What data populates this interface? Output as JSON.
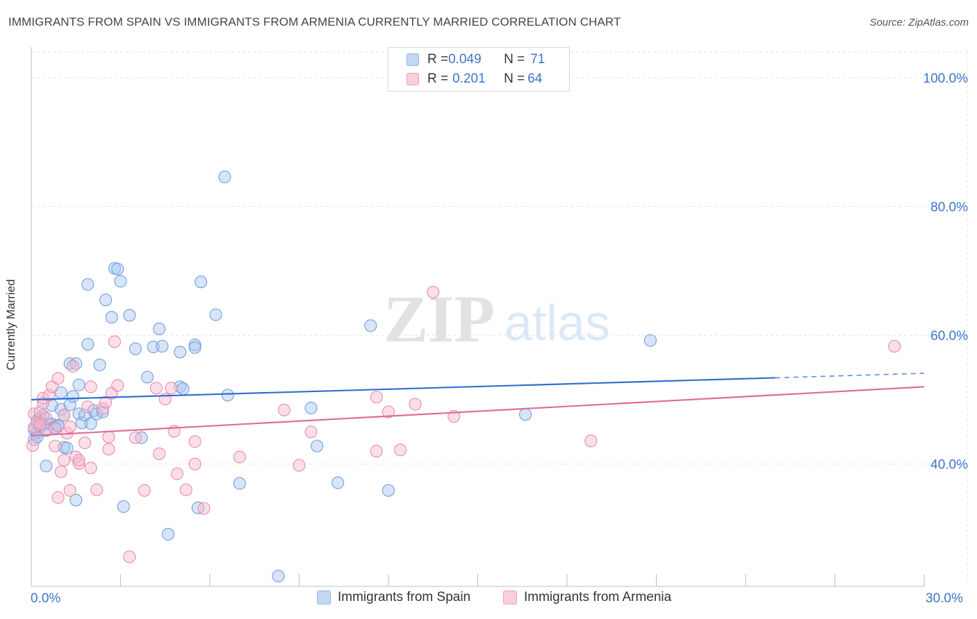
{
  "header": {
    "title": "IMMIGRANTS FROM SPAIN VS IMMIGRANTS FROM ARMENIA CURRENTLY MARRIED CORRELATION CHART",
    "source": "Source: ZipAtlas.com"
  },
  "watermark": {
    "zip": "ZIP",
    "atlas": "atlas"
  },
  "legend_top": {
    "rows": [
      {
        "r_key": "R = ",
        "r_val": "0.049",
        "n_key": "N = ",
        "n_val": "71",
        "color": "#a9c6ef"
      },
      {
        "r_key": "R = ",
        "r_val": "0.201",
        "n_key": "N = ",
        "n_val": "64",
        "color": "#f6b8cb"
      }
    ]
  },
  "chart_data": {
    "type": "scatter",
    "title": "IMMIGRANTS FROM SPAIN VS IMMIGRANTS FROM ARMENIA CURRENTLY MARRIED CORRELATION CHART",
    "xlabel": "",
    "ylabel": "Currently Married",
    "xlim": [
      0,
      30
    ],
    "ylim": [
      21,
      104
    ],
    "x_tick_labels": [
      "0.0%",
      "30.0%"
    ],
    "y_ticks": [
      40,
      60,
      80,
      100
    ],
    "y_tick_labels": [
      "40.0%",
      "60.0%",
      "80.0%",
      "100.0%"
    ],
    "grid": true,
    "legend": "bottom",
    "series": [
      {
        "name": "Immigrants from Spain",
        "color": "#a9c6ef",
        "stroke": "#6f9fdc",
        "line_color": "#2f6fcf",
        "R": 0.049,
        "N": 71,
        "trend": {
          "x0": 0,
          "y0": 50.0,
          "x1": 25.0,
          "y1": 53.4,
          "dash_to_x": 30,
          "dash_to_y": 54.1
        },
        "points": [
          [
            0.1,
            45.3
          ],
          [
            0.1,
            43.8
          ],
          [
            0.2,
            46.8
          ],
          [
            0.2,
            44.9
          ],
          [
            0.3,
            45.8
          ],
          [
            0.3,
            47.2
          ],
          [
            0.4,
            47.5
          ],
          [
            0.4,
            46.1
          ],
          [
            0.5,
            45.2
          ],
          [
            0.5,
            39.7
          ],
          [
            0.6,
            46.3
          ],
          [
            0.7,
            49.1
          ],
          [
            0.7,
            46.2
          ],
          [
            0.8,
            45.7
          ],
          [
            0.9,
            45.9
          ],
          [
            1.0,
            51.1
          ],
          [
            1.0,
            48.5
          ],
          [
            1.1,
            47.6
          ],
          [
            1.1,
            42.6
          ],
          [
            1.2,
            42.5
          ],
          [
            1.3,
            55.6
          ],
          [
            1.3,
            49.2
          ],
          [
            1.4,
            50.5
          ],
          [
            1.5,
            55.6
          ],
          [
            1.5,
            34.4
          ],
          [
            1.6,
            52.3
          ],
          [
            1.6,
            47.8
          ],
          [
            1.7,
            46.4
          ],
          [
            1.8,
            47.6
          ],
          [
            1.9,
            58.6
          ],
          [
            1.9,
            67.9
          ],
          [
            2.0,
            46.3
          ],
          [
            2.1,
            48.3
          ],
          [
            2.2,
            47.8
          ],
          [
            2.3,
            55.4
          ],
          [
            2.4,
            48.1
          ],
          [
            2.5,
            65.5
          ],
          [
            2.7,
            62.8
          ],
          [
            2.8,
            70.4
          ],
          [
            2.9,
            70.3
          ],
          [
            3.0,
            68.4
          ],
          [
            3.1,
            33.4
          ],
          [
            3.3,
            63.1
          ],
          [
            3.5,
            57.9
          ],
          [
            3.7,
            44.1
          ],
          [
            3.9,
            53.5
          ],
          [
            4.1,
            58.2
          ],
          [
            4.3,
            61.0
          ],
          [
            4.4,
            58.3
          ],
          [
            4.6,
            29.1
          ],
          [
            5.0,
            57.4
          ],
          [
            5.0,
            52.0
          ],
          [
            5.1,
            51.7
          ],
          [
            5.5,
            58.5
          ],
          [
            5.5,
            58.1
          ],
          [
            5.6,
            33.2
          ],
          [
            5.7,
            68.3
          ],
          [
            6.2,
            63.2
          ],
          [
            6.5,
            84.6
          ],
          [
            6.6,
            50.7
          ],
          [
            7.0,
            37.0
          ],
          [
            8.3,
            22.6
          ],
          [
            9.4,
            48.7
          ],
          [
            9.6,
            42.8
          ],
          [
            10.3,
            37.1
          ],
          [
            11.4,
            61.5
          ],
          [
            12.0,
            35.9
          ],
          [
            16.6,
            47.7
          ],
          [
            20.8,
            59.2
          ],
          [
            0.2,
            44.2
          ],
          [
            0.9,
            46.0
          ]
        ]
      },
      {
        "name": "Immigrants from Armenia",
        "color": "#f6b8cb",
        "stroke": "#ea8aa9",
        "line_color": "#e06b97",
        "R": 0.201,
        "N": 64,
        "trend": {
          "x0": 0,
          "y0": 44.4,
          "x1": 30,
          "y1": 52.0
        },
        "points": [
          [
            0.05,
            42.9
          ],
          [
            0.1,
            47.8
          ],
          [
            0.1,
            45.7
          ],
          [
            0.2,
            46.4
          ],
          [
            0.3,
            48.1
          ],
          [
            0.4,
            49.5
          ],
          [
            0.4,
            50.2
          ],
          [
            0.5,
            47.1
          ],
          [
            0.5,
            45.3
          ],
          [
            0.6,
            50.7
          ],
          [
            0.7,
            52.0
          ],
          [
            0.8,
            45.5
          ],
          [
            0.8,
            42.8
          ],
          [
            0.9,
            53.3
          ],
          [
            0.9,
            34.8
          ],
          [
            1.0,
            38.8
          ],
          [
            1.1,
            47.6
          ],
          [
            1.1,
            40.6
          ],
          [
            1.2,
            44.8
          ],
          [
            1.3,
            45.8
          ],
          [
            1.3,
            35.9
          ],
          [
            1.4,
            55.2
          ],
          [
            1.5,
            41.1
          ],
          [
            1.6,
            40.1
          ],
          [
            1.6,
            40.6
          ],
          [
            1.8,
            43.3
          ],
          [
            1.9,
            48.9
          ],
          [
            2.0,
            39.4
          ],
          [
            2.0,
            52.0
          ],
          [
            2.2,
            36.0
          ],
          [
            2.4,
            48.6
          ],
          [
            2.5,
            49.6
          ],
          [
            2.6,
            42.3
          ],
          [
            2.6,
            44.2
          ],
          [
            2.7,
            51.0
          ],
          [
            2.8,
            59.0
          ],
          [
            2.9,
            52.2
          ],
          [
            3.3,
            25.6
          ],
          [
            3.5,
            44.1
          ],
          [
            3.8,
            35.9
          ],
          [
            4.2,
            51.8
          ],
          [
            4.3,
            41.6
          ],
          [
            4.5,
            50.1
          ],
          [
            4.7,
            51.8
          ],
          [
            4.8,
            45.1
          ],
          [
            4.9,
            38.5
          ],
          [
            5.2,
            36.0
          ],
          [
            5.5,
            40.0
          ],
          [
            5.5,
            43.5
          ],
          [
            5.8,
            33.1
          ],
          [
            7.0,
            41.1
          ],
          [
            8.5,
            48.4
          ],
          [
            9.0,
            39.8
          ],
          [
            9.4,
            45.0
          ],
          [
            11.6,
            50.4
          ],
          [
            11.6,
            42.0
          ],
          [
            12.0,
            48.1
          ],
          [
            12.4,
            42.2
          ],
          [
            12.9,
            49.3
          ],
          [
            13.5,
            66.7
          ],
          [
            14.2,
            47.4
          ],
          [
            18.8,
            43.6
          ],
          [
            29.0,
            58.3
          ],
          [
            0.3,
            46.2
          ]
        ]
      }
    ]
  },
  "bottom_legend": [
    "Immigrants from Spain",
    "Immigrants from Armenia"
  ]
}
